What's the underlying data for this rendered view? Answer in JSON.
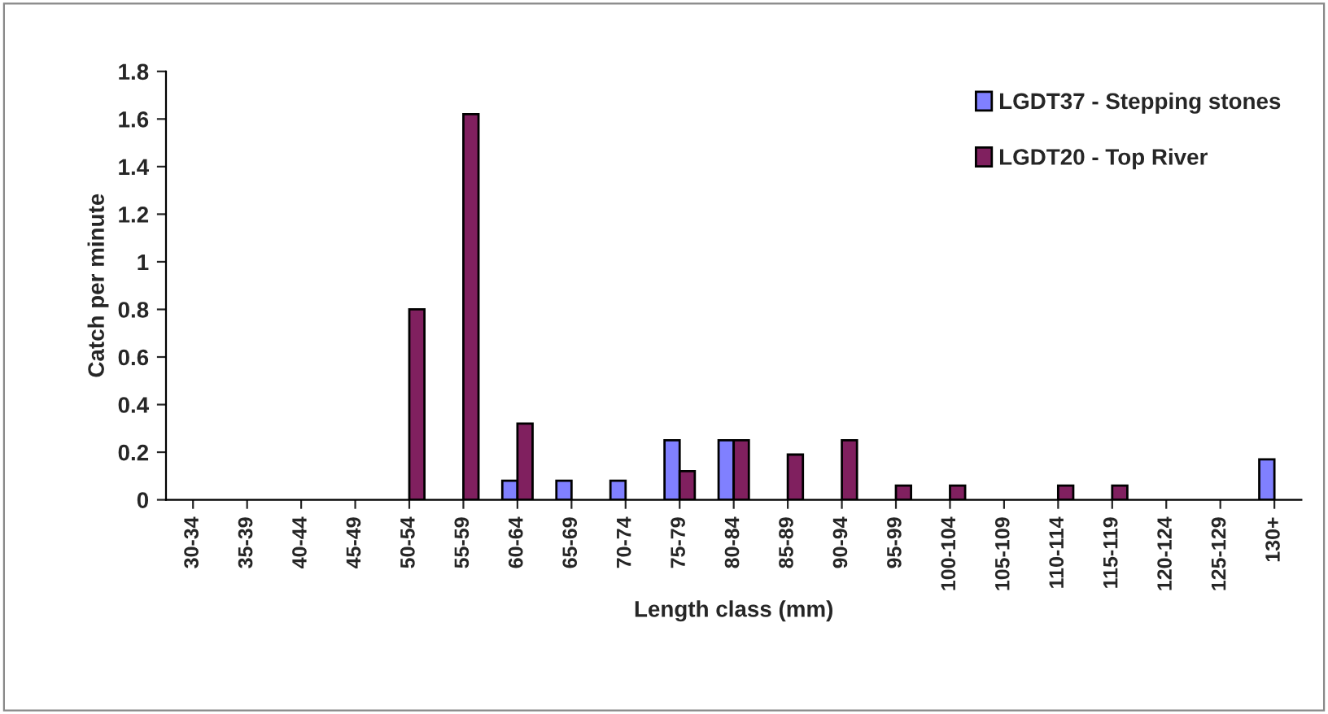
{
  "chart_data": {
    "type": "bar",
    "xlabel": "Length class (mm)",
    "ylabel": "Catch per minute",
    "categories": [
      "30-34",
      "35-39",
      "40-44",
      "45-49",
      "50-54",
      "55-59",
      "60-64",
      "65-69",
      "70-74",
      "75-79",
      "80-84",
      "85-89",
      "90-94",
      "95-99",
      "100-104",
      "105-109",
      "110-114",
      "115-119",
      "120-124",
      "125-129",
      "130+"
    ],
    "series": [
      {
        "name": "LGDT37 - Stepping stones",
        "color": "#8080ff",
        "values": [
          0,
          0,
          0,
          0,
          0,
          0,
          0.08,
          0.08,
          0.08,
          0.25,
          0.25,
          0,
          0,
          0,
          0,
          0,
          0,
          0,
          0,
          0,
          0.17
        ]
      },
      {
        "name": "LGDT20 - Top River",
        "color": "#80205f",
        "values": [
          0,
          0,
          0,
          0,
          0.8,
          1.62,
          0.32,
          0,
          0,
          0.12,
          0.25,
          0.19,
          0.25,
          0.06,
          0.06,
          0,
          0.06,
          0.06,
          0,
          0,
          0
        ]
      }
    ],
    "ylim": [
      0,
      1.8
    ],
    "yticks": [
      {
        "value": 0,
        "label": "0"
      },
      0.2,
      0.4,
      0.6,
      0.8,
      {
        "value": 1,
        "label": "1"
      },
      1.2,
      1.4,
      1.6,
      1.8
    ],
    "grid": false,
    "legend": "top right"
  }
}
